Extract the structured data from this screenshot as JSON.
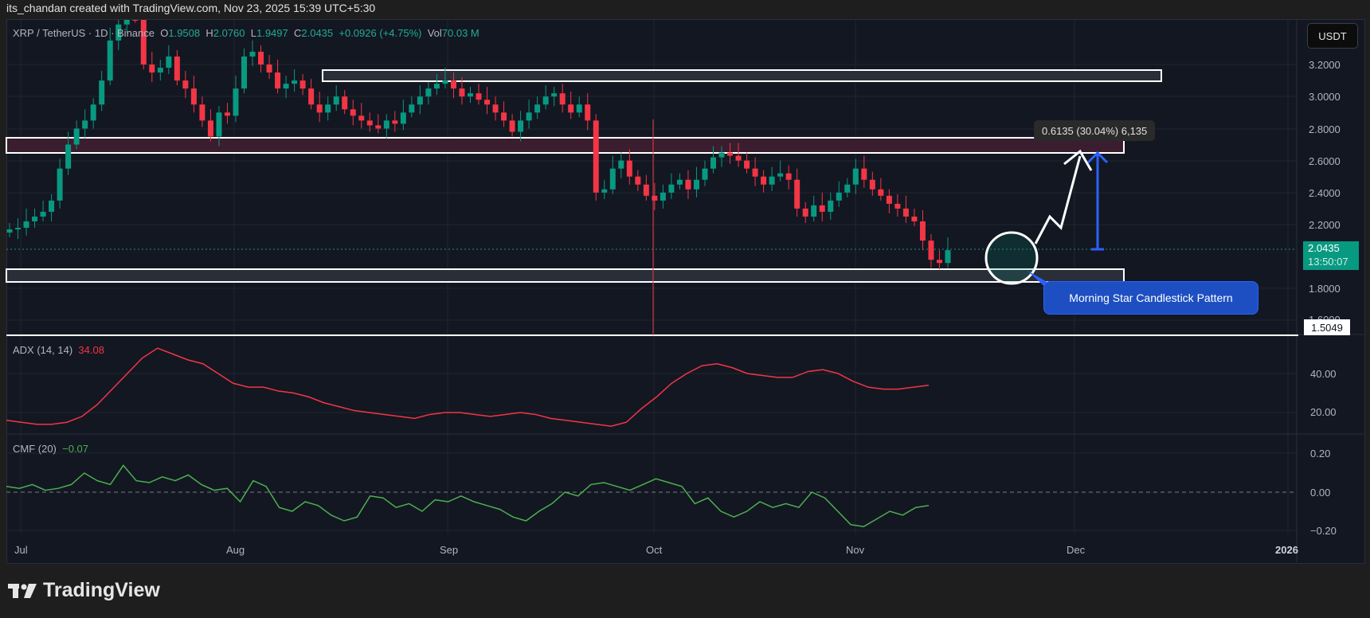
{
  "credit": "its_chandan created with TradingView.com, Nov 23, 2025 15:39 UTC+5:30",
  "legend": {
    "symbol": "XRP / TetherUS · 1D · Binance",
    "o_label": "O",
    "o": "1.9508",
    "h_label": "H",
    "h": "2.0760",
    "l_label": "L",
    "l": "1.9497",
    "c_label": "C",
    "c": "2.0435",
    "change": "+0.0926 (+4.75%)",
    "vol_label": "Vol",
    "vol": "70.03 M"
  },
  "currency_button": "USDT",
  "price_axis": [
    "3.2000",
    "3.0000",
    "2.8000",
    "2.6000",
    "2.4000",
    "2.2000",
    "1.8000",
    "1.6000"
  ],
  "last_price": {
    "value": "2.0435",
    "countdown": "13:50:07"
  },
  "level_badge": "1.5049",
  "measure_label": "0.6135 (30.04%) 6,135",
  "callout": "Morning Star Candlestick Pattern",
  "adx": {
    "label": "ADX (14, 14)",
    "value": "34.08",
    "axis": [
      "40.00",
      "20.00"
    ]
  },
  "cmf": {
    "label": "CMF (20)",
    "value": "−0.07",
    "axis": [
      "0.20",
      "0.00",
      "−0.20"
    ]
  },
  "time_axis": [
    "Jul",
    "Aug",
    "Sep",
    "Oct",
    "Nov",
    "Dec",
    "2026"
  ],
  "brand": "TradingView",
  "colors": {
    "up": "#089981",
    "down": "#f23645",
    "bg": "#131722",
    "adx": "#f23645",
    "cmf": "#4caf50",
    "accent": "#2962ff"
  },
  "chart_data": [
    {
      "type": "candlestick",
      "title": "XRP / TetherUS · 1D · Binance",
      "ylabel": "USDT",
      "ylim": [
        1.5,
        3.35
      ],
      "xlabel": "",
      "x_ticks": [
        "Jul",
        "Aug",
        "Sep",
        "Oct",
        "Nov",
        "Dec",
        "2026"
      ],
      "last_close": 2.0435,
      "zones": [
        {
          "name": "resistance-top",
          "from": 3.09,
          "to": 3.12
        },
        {
          "name": "resistance-mid",
          "from": 2.65,
          "to": 2.75
        },
        {
          "name": "support",
          "from": 1.83,
          "to": 1.92
        },
        {
          "name": "low-line",
          "value": 1.5049
        }
      ],
      "annotations": [
        "Morning Star Candlestick Pattern",
        "0.6135 (30.04%) 6,135"
      ],
      "approx_closes": [
        2.17,
        2.18,
        2.22,
        2.25,
        2.28,
        2.35,
        2.55,
        2.7,
        2.8,
        2.85,
        2.95,
        3.1,
        3.35,
        3.45,
        3.55,
        3.5,
        3.2,
        3.15,
        3.18,
        3.25,
        3.1,
        3.05,
        2.95,
        2.85,
        2.75,
        2.9,
        2.88,
        3.05,
        3.25,
        3.28,
        3.2,
        3.15,
        3.05,
        3.08,
        3.1,
        3.05,
        2.95,
        2.9,
        2.95,
        3.0,
        2.92,
        2.88,
        2.85,
        2.82,
        2.8,
        2.85,
        2.83,
        2.9,
        2.95,
        3.0,
        3.05,
        3.08,
        3.1,
        3.05,
        3.0,
        3.02,
        2.98,
        2.95,
        2.9,
        2.85,
        2.78,
        2.85,
        2.9,
        2.95,
        3.0,
        3.02,
        2.95,
        2.9,
        2.95,
        2.85,
        2.4,
        2.42,
        2.55,
        2.6,
        2.5,
        2.45,
        2.38,
        2.35,
        2.4,
        2.45,
        2.48,
        2.42,
        2.48,
        2.55,
        2.62,
        2.65,
        2.63,
        2.6,
        2.55,
        2.5,
        2.45,
        2.5,
        2.52,
        2.48,
        2.3,
        2.25,
        2.32,
        2.28,
        2.35,
        2.4,
        2.45,
        2.55,
        2.48,
        2.42,
        2.38,
        2.33,
        2.3,
        2.25,
        2.22,
        2.1,
        1.98,
        1.96,
        2.04
      ]
    },
    {
      "type": "line",
      "title": "ADX (14, 14)",
      "ylim": [
        10,
        55
      ],
      "series": [
        {
          "name": "ADX",
          "last": 34.08,
          "approx_values": [
            16,
            15,
            14,
            14,
            15,
            18,
            24,
            32,
            40,
            48,
            53,
            50,
            47,
            45,
            40,
            35,
            33,
            33,
            31,
            30,
            28,
            25,
            23,
            21,
            20,
            19,
            18,
            17,
            19,
            20,
            20,
            19,
            18,
            19,
            20,
            19,
            17,
            16,
            15,
            14,
            13,
            15,
            22,
            28,
            35,
            40,
            44,
            45,
            43,
            40,
            39,
            38,
            38,
            41,
            42,
            40,
            36,
            33,
            32,
            32,
            33,
            34
          ]
        }
      ]
    },
    {
      "type": "line",
      "title": "CMF (20)",
      "ylim": [
        -0.22,
        0.22
      ],
      "series": [
        {
          "name": "CMF",
          "last": -0.07,
          "approx_values": [
            0.03,
            0.02,
            0.04,
            0.01,
            0.02,
            0.04,
            0.1,
            0.06,
            0.04,
            0.14,
            0.06,
            0.05,
            0.08,
            0.06,
            0.09,
            0.04,
            0.01,
            0.02,
            -0.05,
            0.06,
            0.03,
            -0.08,
            -0.1,
            -0.05,
            -0.07,
            -0.12,
            -0.15,
            -0.13,
            -0.02,
            -0.03,
            -0.08,
            -0.06,
            -0.1,
            -0.04,
            -0.05,
            -0.02,
            -0.05,
            -0.07,
            -0.09,
            -0.13,
            -0.15,
            -0.1,
            -0.06,
            0.0,
            -0.02,
            0.04,
            0.05,
            0.03,
            0.01,
            0.04,
            0.07,
            0.05,
            0.03,
            -0.06,
            -0.03,
            -0.1,
            -0.13,
            -0.1,
            -0.05,
            -0.08,
            -0.06,
            -0.08,
            0.0,
            -0.03,
            -0.1,
            -0.17,
            -0.18,
            -0.14,
            -0.1,
            -0.12,
            -0.08,
            -0.07
          ]
        }
      ]
    }
  ]
}
